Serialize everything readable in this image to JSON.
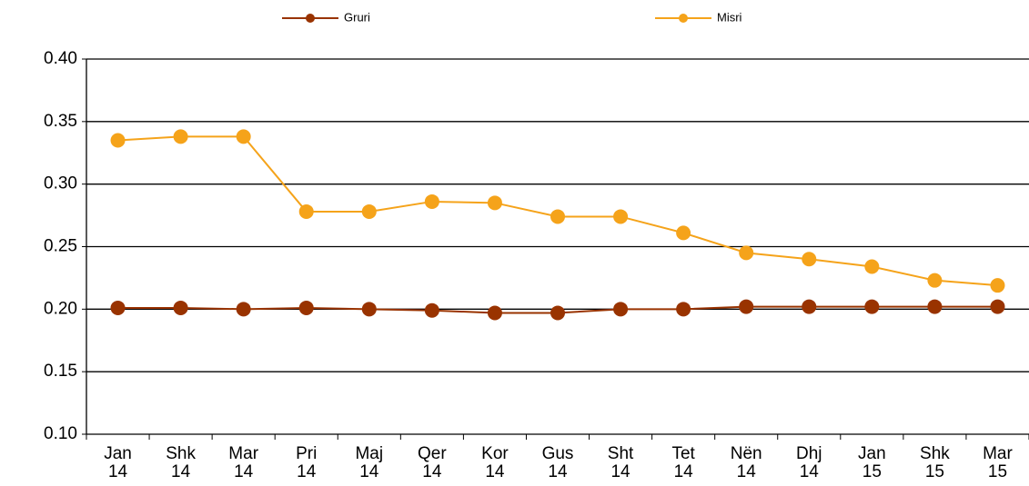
{
  "chart_data": {
    "type": "line",
    "categories": [
      [
        "Jan",
        "14"
      ],
      [
        "Shk",
        "14"
      ],
      [
        "Mar",
        "14"
      ],
      [
        "Pri",
        "14"
      ],
      [
        "Maj",
        "14"
      ],
      [
        "Qer",
        "14"
      ],
      [
        "Kor",
        "14"
      ],
      [
        "Gus",
        "14"
      ],
      [
        "Sht",
        "14"
      ],
      [
        "Tet",
        "14"
      ],
      [
        "Nën",
        "14"
      ],
      [
        "Dhj",
        "14"
      ],
      [
        "Jan",
        "15"
      ],
      [
        "Shk",
        "15"
      ],
      [
        "Mar",
        "15"
      ]
    ],
    "series": [
      {
        "name": "Gruri",
        "color": "#993300",
        "values": [
          0.201,
          0.201,
          0.2,
          0.201,
          0.2,
          0.199,
          0.197,
          0.197,
          0.2,
          0.2,
          0.202,
          0.202,
          0.202,
          0.202,
          0.202
        ]
      },
      {
        "name": "Misri",
        "color": "#f5a31a",
        "values": [
          0.335,
          0.338,
          0.338,
          0.278,
          0.278,
          0.286,
          0.285,
          0.274,
          0.274,
          0.261,
          0.245,
          0.24,
          0.234,
          0.223,
          0.219
        ]
      }
    ],
    "ylim": [
      0.1,
      0.4
    ],
    "yticks": [
      {
        "value": 0.1,
        "label": "0.10"
      },
      {
        "value": 0.15,
        "label": "0.15"
      },
      {
        "value": 0.2,
        "label": "0.20"
      },
      {
        "value": 0.25,
        "label": "0.25"
      },
      {
        "value": 0.3,
        "label": "0.30"
      },
      {
        "value": 0.35,
        "label": "0.35"
      },
      {
        "value": 0.4,
        "label": "0.40"
      }
    ],
    "grid": true,
    "legend": "top"
  }
}
